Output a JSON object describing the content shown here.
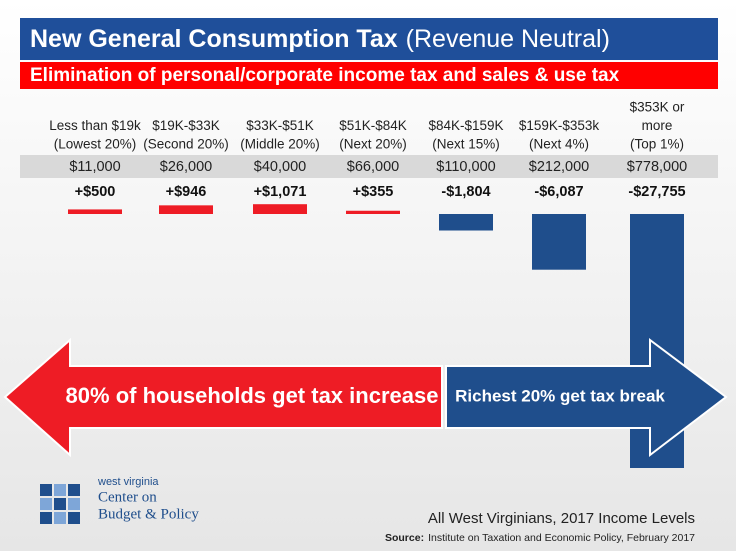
{
  "chart_data": {
    "type": "bar",
    "title": "New General Consumption Tax",
    "title_note": "(Revenue Neutral)",
    "subtitle": "Elimination of personal/corporate income tax and sales & use tax",
    "categories": [
      [
        "Less than $19k",
        "(Lowest 20%)"
      ],
      [
        "$19K-$33K",
        "(Second 20%)"
      ],
      [
        "$33K-$51K",
        "(Middle 20%)"
      ],
      [
        "$51K-$84K",
        "(Next 20%)"
      ],
      [
        "$84K-$159K",
        "(Next 15%)"
      ],
      [
        "$159K-$353k",
        "(Next 4%)"
      ],
      [
        "$353K or",
        "more",
        "(Top 1%)"
      ]
    ],
    "income_labels": [
      "$11,000",
      "$26,000",
      "$40,000",
      "$66,000",
      "$110,000",
      "$212,000",
      "$778,000"
    ],
    "values": [
      500,
      946,
      1071,
      355,
      -1804,
      -6087,
      -27755
    ],
    "value_labels": [
      "+$500",
      "+$946",
      "+$1,071",
      "+$355",
      "-$1,804",
      "-$6,087",
      "-$27,755"
    ],
    "positive_color": "#ee1c25",
    "negative_color": "#1f4e8c",
    "arrow_left_text": "80% of households get tax increase",
    "arrow_right_text": "Richest 20% get tax break",
    "logo": {
      "line1": "west virginia",
      "line2": "Center on",
      "line3": "Budget & Policy"
    },
    "footer": "All West Virginians, 2017 Income Levels",
    "source_label": "Source:",
    "source": "Institute on Taxation and Economic Policy, February 2017"
  }
}
